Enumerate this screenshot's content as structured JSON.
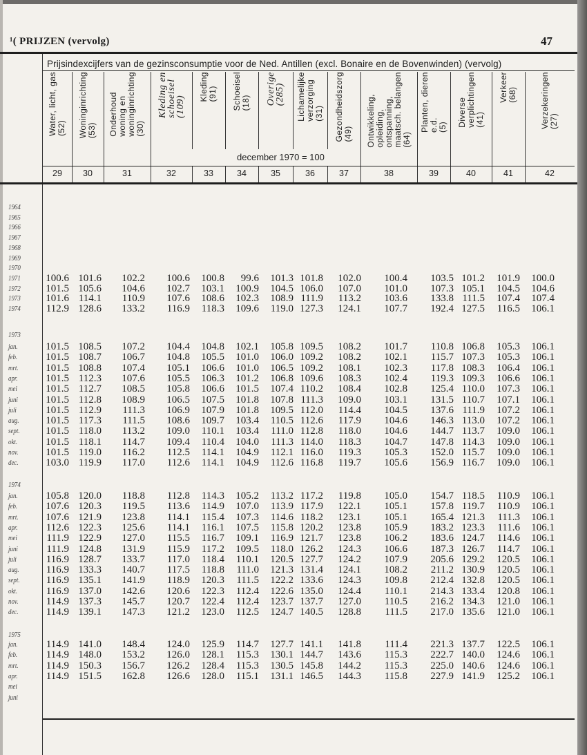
{
  "page": {
    "section_title": "PRIJZEN (vervolg)",
    "section_prefix": "¹(",
    "page_number": "47"
  },
  "table": {
    "title": "Prijsindexcijfers van de gezinsconsumptie voor de Ned. Antillen (excl. Bonaire en de Bovenwinden) (vervolg)",
    "base_note": "december 1970 = 100",
    "columns": [
      {
        "label": "Water, licht, gas\n(52)",
        "number": "29",
        "italic": false
      },
      {
        "label": "Woninginrichting\n(53)",
        "number": "30",
        "italic": false
      },
      {
        "label": "Onderhoud\nwoning en\nwoninginrichting\n(30)",
        "number": "31",
        "italic": false
      },
      {
        "label": "Kleding en\nschoeisel\n(109)",
        "number": "32",
        "italic": true
      },
      {
        "label": "Kleding\n(91)",
        "number": "33",
        "italic": false
      },
      {
        "label": "Schoeisel\n(18)",
        "number": "34",
        "italic": false
      },
      {
        "label": "Overige\n(285)",
        "number": "35",
        "italic": true
      },
      {
        "label": "Lichamelijke\nverzorging\n(31)",
        "number": "36",
        "italic": false
      },
      {
        "label": "Gezondheidszorg\n(49)",
        "number": "37",
        "italic": false
      },
      {
        "label": "Ontwikkeling,\nopleiding,\nontspanning,\nmaatsch. belangen\n(64)",
        "number": "38",
        "italic": false
      },
      {
        "label": "Planten, dieren\ne.d.\n(5)",
        "number": "39",
        "italic": false
      },
      {
        "label": "Diverse\nverplichtingen\n(41)",
        "number": "40",
        "italic": false
      },
      {
        "label": "Verkeer\n(68)",
        "number": "41",
        "italic": false
      },
      {
        "label": "Verzekeringen\n(27)",
        "number": "42",
        "italic": false
      }
    ],
    "blocks": [
      {
        "label": "",
        "rows": [
          {
            "label": "1964",
            "values": []
          },
          {
            "label": "1965",
            "values": []
          },
          {
            "label": "1966",
            "values": []
          },
          {
            "label": "1967",
            "values": []
          },
          {
            "label": "1968",
            "values": []
          },
          {
            "label": "1969",
            "values": []
          },
          {
            "label": "1970",
            "values": []
          },
          {
            "label": "1971",
            "values": [
              "100.6",
              "101.6",
              "102.2",
              "100.6",
              "100.8",
              "99.6",
              "101.3",
              "101.8",
              "102.0",
              "100.4",
              "103.5",
              "101.2",
              "101.9",
              "100.0"
            ]
          },
          {
            "label": "1972",
            "values": [
              "101.5",
              "105.6",
              "104.6",
              "102.7",
              "103.1",
              "100.9",
              "104.5",
              "106.0",
              "107.0",
              "101.0",
              "107.3",
              "105.1",
              "104.5",
              "104.6"
            ]
          },
          {
            "label": "1973",
            "values": [
              "101.6",
              "114.1",
              "110.9",
              "107.6",
              "108.6",
              "102.3",
              "108.9",
              "111.9",
              "113.2",
              "103.6",
              "133.8",
              "111.5",
              "107.4",
              "107.4"
            ]
          },
          {
            "label": "1974",
            "values": [
              "112.9",
              "128.6",
              "133.2",
              "116.9",
              "118.3",
              "109.6",
              "119.0",
              "127.3",
              "124.1",
              "107.7",
              "192.4",
              "127.5",
              "116.5",
              "106.1"
            ]
          }
        ]
      },
      {
        "label": "1973",
        "rows": [
          {
            "label": "jan.",
            "values": [
              "101.5",
              "108.5",
              "107.2",
              "104.4",
              "104.8",
              "102.1",
              "105.8",
              "109.5",
              "108.2",
              "101.7",
              "110.8",
              "106.8",
              "105.3",
              "106.1"
            ]
          },
          {
            "label": "feb.",
            "values": [
              "101.5",
              "108.7",
              "106.7",
              "104.8",
              "105.5",
              "101.0",
              "106.0",
              "109.2",
              "108.2",
              "102.1",
              "115.7",
              "107.3",
              "105.3",
              "106.1"
            ]
          },
          {
            "label": "mrt.",
            "values": [
              "101.5",
              "108.8",
              "107.4",
              "105.1",
              "106.6",
              "101.0",
              "106.5",
              "109.2",
              "108.1",
              "102.3",
              "117.8",
              "108.3",
              "106.4",
              "106.1"
            ]
          },
          {
            "label": "apr.",
            "values": [
              "101.5",
              "112.3",
              "107.6",
              "105.5",
              "106.3",
              "101.2",
              "106.8",
              "109.6",
              "108.3",
              "102.4",
              "119.3",
              "109.3",
              "106.6",
              "106.1"
            ]
          },
          {
            "label": "mei",
            "values": [
              "101.5",
              "112.7",
              "108.5",
              "105.8",
              "106.6",
              "101.5",
              "107.4",
              "110.2",
              "108.4",
              "102.8",
              "125.4",
              "110.0",
              "107.3",
              "106.1"
            ]
          },
          {
            "label": "juni",
            "values": [
              "101.5",
              "112.8",
              "108.9",
              "106.5",
              "107.5",
              "101.8",
              "107.8",
              "111.3",
              "109.0",
              "103.1",
              "131.5",
              "110.7",
              "107.1",
              "106.1"
            ]
          },
          {
            "label": "juli",
            "values": [
              "101.5",
              "112.9",
              "111.3",
              "106.9",
              "107.9",
              "101.8",
              "109.5",
              "112.0",
              "114.4",
              "104.5",
              "137.6",
              "111.9",
              "107.2",
              "106.1"
            ]
          },
          {
            "label": "aug.",
            "values": [
              "101.5",
              "117.3",
              "111.5",
              "108.6",
              "109.7",
              "103.4",
              "110.5",
              "112.6",
              "117.9",
              "104.6",
              "146.3",
              "113.0",
              "107.2",
              "106.1"
            ]
          },
          {
            "label": "sept.",
            "values": [
              "101.5",
              "118.0",
              "113.2",
              "109.0",
              "110.1",
              "103.4",
              "111.0",
              "112.8",
              "118.0",
              "104.6",
              "144.7",
              "113.7",
              "109.0",
              "106.1"
            ]
          },
          {
            "label": "okt.",
            "values": [
              "101.5",
              "118.1",
              "114.7",
              "109.4",
              "110.4",
              "104.0",
              "111.3",
              "114.0",
              "118.3",
              "104.7",
              "147.8",
              "114.3",
              "109.0",
              "106.1"
            ]
          },
          {
            "label": "nov.",
            "values": [
              "101.5",
              "119.0",
              "116.2",
              "112.5",
              "114.1",
              "104.9",
              "112.1",
              "116.0",
              "119.3",
              "105.3",
              "152.0",
              "115.7",
              "109.0",
              "106.1"
            ]
          },
          {
            "label": "dec.",
            "values": [
              "103.0",
              "119.9",
              "117.0",
              "112.6",
              "114.1",
              "104.9",
              "112.6",
              "116.8",
              "119.7",
              "105.6",
              "156.9",
              "116.7",
              "109.0",
              "106.1"
            ]
          }
        ]
      },
      {
        "label": "1974",
        "rows": [
          {
            "label": "jan.",
            "values": [
              "105.8",
              "120.0",
              "118.8",
              "112.8",
              "114.3",
              "105.2",
              "113.2",
              "117.2",
              "119.8",
              "105.0",
              "154.7",
              "118.5",
              "110.9",
              "106.1"
            ]
          },
          {
            "label": "feb.",
            "values": [
              "107.6",
              "120.3",
              "119.5",
              "113.6",
              "114.9",
              "107.0",
              "113.9",
              "117.9",
              "122.1",
              "105.1",
              "157.8",
              "119.7",
              "110.9",
              "106.1"
            ]
          },
          {
            "label": "mrt.",
            "values": [
              "107.6",
              "121.9",
              "123.8",
              "114.1",
              "115.4",
              "107.3",
              "114.6",
              "118.2",
              "123.1",
              "105.1",
              "165.4",
              "121.3",
              "111.3",
              "106.1"
            ]
          },
          {
            "label": "apr.",
            "values": [
              "112.6",
              "122.3",
              "125.6",
              "114.1",
              "116.1",
              "107.5",
              "115.8",
              "120.2",
              "123.8",
              "105.9",
              "183.2",
              "123.3",
              "111.6",
              "106.1"
            ]
          },
          {
            "label": "mei",
            "values": [
              "111.9",
              "122.9",
              "127.0",
              "115.5",
              "116.7",
              "109.1",
              "116.9",
              "121.7",
              "123.8",
              "106.2",
              "183.6",
              "124.7",
              "114.6",
              "106.1"
            ]
          },
          {
            "label": "juni",
            "values": [
              "111.9",
              "124.8",
              "131.9",
              "115.9",
              "117.2",
              "109.5",
              "118.0",
              "126.2",
              "124.3",
              "106.6",
              "187.3",
              "126.7",
              "114.7",
              "106.1"
            ]
          },
          {
            "label": "juli",
            "values": [
              "116.9",
              "128.7",
              "133.7",
              "117.0",
              "118.4",
              "110.1",
              "120.5",
              "127.7",
              "124.2",
              "107.9",
              "205.6",
              "129.2",
              "120.5",
              "106.1"
            ]
          },
          {
            "label": "aug.",
            "values": [
              "116.9",
              "133.3",
              "140.7",
              "117.5",
              "118.8",
              "111.0",
              "121.3",
              "131.4",
              "124.1",
              "108.2",
              "211.2",
              "130.9",
              "120.5",
              "106.1"
            ]
          },
          {
            "label": "sept.",
            "values": [
              "116.9",
              "135.1",
              "141.9",
              "118.9",
              "120.3",
              "111.5",
              "122.2",
              "133.6",
              "124.3",
              "109.8",
              "212.4",
              "132.8",
              "120.5",
              "106.1"
            ]
          },
          {
            "label": "okt.",
            "values": [
              "116.9",
              "137.0",
              "142.6",
              "120.6",
              "122.3",
              "112.4",
              "122.6",
              "135.0",
              "124.4",
              "110.1",
              "214.3",
              "133.4",
              "120.8",
              "106.1"
            ]
          },
          {
            "label": "nov.",
            "values": [
              "114.9",
              "137.3",
              "145.7",
              "120.7",
              "122.4",
              "112.4",
              "123.7",
              "137.7",
              "127.0",
              "110.5",
              "216.2",
              "134.3",
              "121.0",
              "106.1"
            ]
          },
          {
            "label": "dec.",
            "values": [
              "114.9",
              "139.1",
              "147.3",
              "121.2",
              "123.0",
              "112.5",
              "124.7",
              "140.5",
              "128.8",
              "111.5",
              "217.0",
              "135.6",
              "121.0",
              "106.1"
            ]
          }
        ]
      },
      {
        "label": "1975",
        "rows": [
          {
            "label": "jan.",
            "values": [
              "114.9",
              "141.0",
              "148.4",
              "124.0",
              "125.9",
              "114.7",
              "127.7",
              "141.1",
              "141.8",
              "111.4",
              "221.3",
              "137.7",
              "122.5",
              "106.1"
            ]
          },
          {
            "label": "feb.",
            "values": [
              "114.9",
              "148.0",
              "153.2",
              "126.0",
              "128.1",
              "115.3",
              "130.1",
              "144.7",
              "143.6",
              "115.3",
              "222.7",
              "140.0",
              "124.6",
              "106.1"
            ]
          },
          {
            "label": "mrt.",
            "values": [
              "114.9",
              "150.3",
              "156.7",
              "126.2",
              "128.4",
              "115.3",
              "130.5",
              "145.8",
              "144.2",
              "115.3",
              "225.0",
              "140.6",
              "124.6",
              "106.1"
            ]
          },
          {
            "label": "apr.",
            "values": [
              "114.9",
              "151.5",
              "162.8",
              "126.6",
              "128.0",
              "115.1",
              "131.1",
              "146.5",
              "144.3",
              "115.8",
              "227.9",
              "141.9",
              "125.2",
              "106.1"
            ]
          },
          {
            "label": "mei",
            "values": []
          },
          {
            "label": "juni",
            "values": []
          }
        ]
      }
    ]
  }
}
